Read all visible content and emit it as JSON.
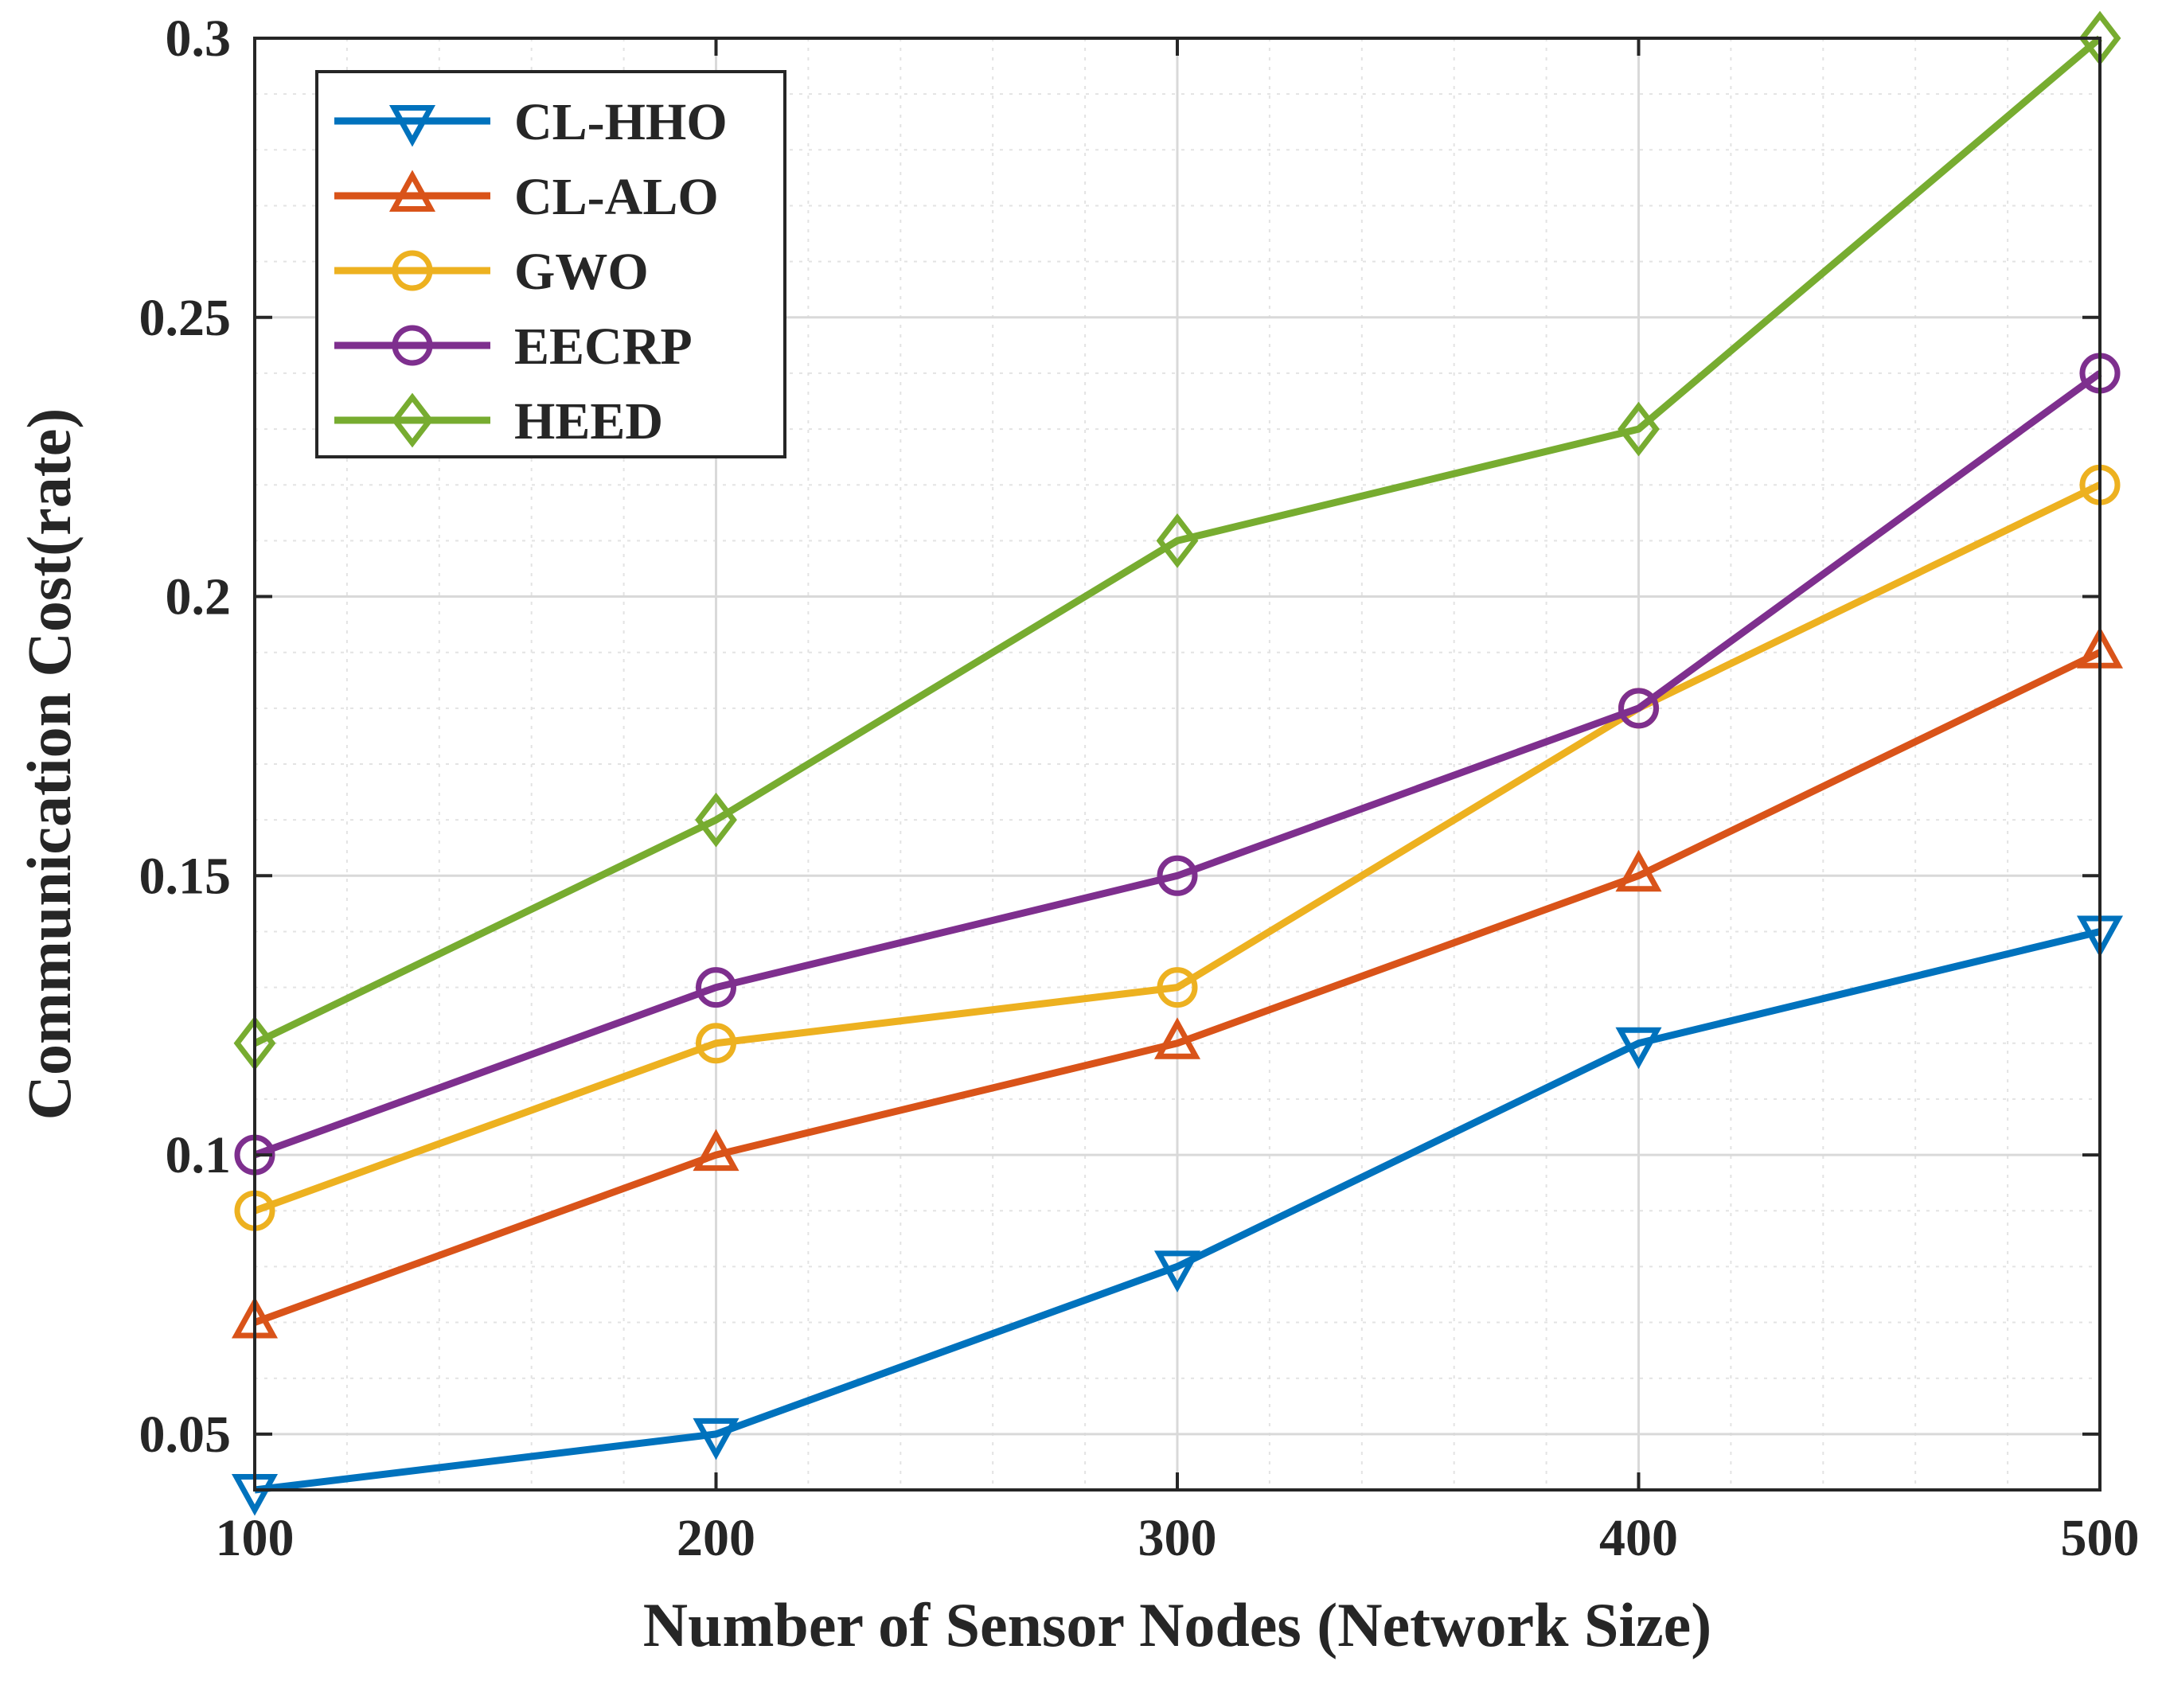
{
  "chart_data": {
    "type": "line",
    "title": "",
    "xlabel": "Number of Sensor Nodes (Network Size)",
    "ylabel": "Communication Cost(rate)",
    "x": [
      100,
      200,
      300,
      400,
      500
    ],
    "xticks": [
      "100",
      "200",
      "300",
      "400",
      "500"
    ],
    "yticks": [
      "0.05",
      "0.1",
      "0.15",
      "0.2",
      "0.25",
      "0.3"
    ],
    "xlim": [
      100,
      500
    ],
    "ylim": [
      0.04,
      0.3
    ],
    "grid": true,
    "minor_grid": true,
    "legend_position": "top-left",
    "series": [
      {
        "name": "CL-HHO",
        "values": [
          0.04,
          0.05,
          0.08,
          0.12,
          0.14
        ],
        "color": "#0072BD",
        "marker": "triangle-down"
      },
      {
        "name": "CL-ALO",
        "values": [
          0.07,
          0.1,
          0.12,
          0.15,
          0.19
        ],
        "color": "#D95319",
        "marker": "triangle-up"
      },
      {
        "name": "GWO",
        "values": [
          0.09,
          0.12,
          0.13,
          0.18,
          0.22
        ],
        "color": "#EDB120",
        "marker": "circle"
      },
      {
        "name": "EECRP",
        "values": [
          0.1,
          0.13,
          0.15,
          0.18,
          0.24
        ],
        "color": "#7E2F8E",
        "marker": "circle"
      },
      {
        "name": "HEED",
        "values": [
          0.12,
          0.16,
          0.21,
          0.23,
          0.3
        ],
        "color": "#77AC30",
        "marker": "diamond"
      }
    ]
  }
}
